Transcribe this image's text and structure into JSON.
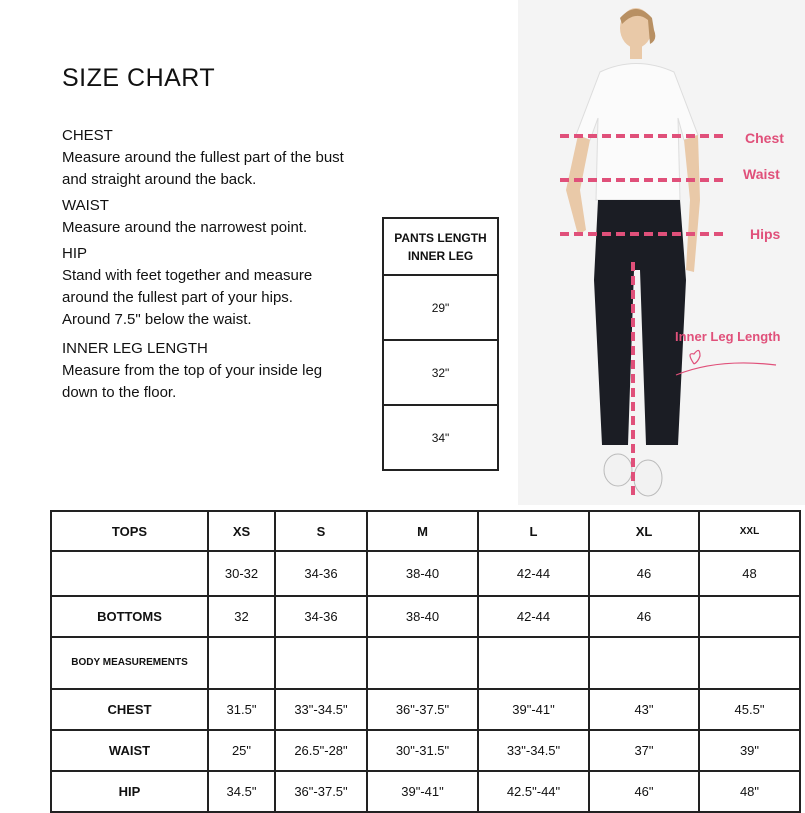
{
  "title": "SIZE CHART",
  "guide": [
    {
      "heading": "CHEST",
      "text": "Measure around the fullest part of the bust and straight around the back."
    },
    {
      "heading": "WAIST",
      "text": "Measure around the narrowest point."
    },
    {
      "heading": "HIP",
      "text": "Stand with feet together and measure around the fullest part of your hips. Around 7.5\" below the waist."
    },
    {
      "heading": "INNER LEG LENGTH",
      "text": "Measure from the top of your inside leg down to the floor."
    }
  ],
  "pants_length": {
    "header_line1": "PANTS LENGTH",
    "header_line2": "INNER LEG",
    "values": [
      "29\"",
      "32\"",
      "34\""
    ]
  },
  "photo_labels": {
    "chest": "Chest",
    "waist": "Waist",
    "hips": "Hips",
    "inner_leg": "Inner Leg Length",
    "accent": "#e0507a"
  },
  "size_table": {
    "rows": [
      [
        "TOPS",
        "XS",
        "S",
        "M",
        "L",
        "XL",
        "XXL"
      ],
      [
        "",
        "30-32",
        "34-36",
        "38-40",
        "42-44",
        "46",
        "48"
      ],
      [
        "BOTTOMS",
        "32",
        "34-36",
        "38-40",
        "42-44",
        "46",
        ""
      ],
      [
        "BODY MEASUREMENTS",
        "",
        "",
        "",
        "",
        "",
        ""
      ],
      [
        "CHEST",
        "31.5\"",
        "33\"-34.5\"",
        "36\"-37.5\"",
        "39\"-41\"",
        "43\"",
        "45.5\""
      ],
      [
        "WAIST",
        "25\"",
        "26.5\"-28\"",
        "30\"-31.5\"",
        "33\"-34.5\"",
        "37\"",
        "39\""
      ],
      [
        "HIP",
        "34.5\"",
        "36\"-37.5\"",
        "39\"-41\"",
        "42.5\"-44\"",
        "46\"",
        "48\""
      ]
    ]
  }
}
